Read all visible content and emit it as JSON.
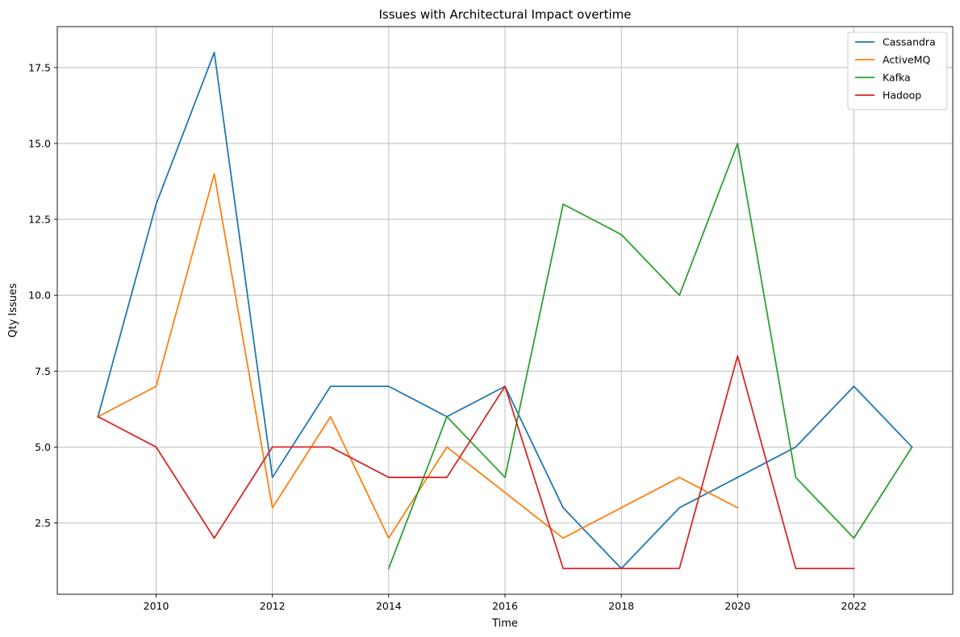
{
  "chart_data": {
    "type": "line",
    "title": "Issues with Architectural Impact overtime",
    "xlabel": "Time",
    "ylabel": "Qty Issues",
    "xlim": [
      2008.3,
      2023.7
    ],
    "ylim": [
      0.15,
      18.85
    ],
    "xticks": [
      2010,
      2012,
      2014,
      2016,
      2018,
      2020,
      2022
    ],
    "xtick_labels": [
      "2010",
      "2012",
      "2014",
      "2016",
      "2018",
      "2020",
      "2022"
    ],
    "yticks": [
      2.5,
      5.0,
      7.5,
      10.0,
      12.5,
      15.0,
      17.5
    ],
    "ytick_labels": [
      "2.5",
      "5.0",
      "7.5",
      "10.0",
      "12.5",
      "15.0",
      "17.5"
    ],
    "grid": true,
    "legend_position": "top-right",
    "series": [
      {
        "name": "Cassandra",
        "color": "#1f77b4",
        "x": [
          2009,
          2010,
          2011,
          2012,
          2013,
          2014,
          2015,
          2016,
          2017,
          2018,
          2019,
          2020,
          2021,
          2022,
          2023
        ],
        "y": [
          6,
          13,
          18,
          4,
          7,
          7,
          6,
          7,
          3,
          1,
          3,
          4,
          5,
          7,
          5
        ]
      },
      {
        "name": "ActiveMQ",
        "color": "#ff7f0e",
        "x": [
          2009,
          2010,
          2011,
          2012,
          2013,
          2014,
          2015,
          2016,
          2017,
          2018,
          2019,
          2020
        ],
        "y": [
          6,
          7,
          14,
          3,
          6,
          2,
          5,
          3.5,
          2,
          3,
          4,
          3
        ]
      },
      {
        "name": "Kafka",
        "color": "#2ca02c",
        "x": [
          2014,
          2015,
          2016,
          2017,
          2018,
          2019,
          2020,
          2021,
          2022,
          2023
        ],
        "y": [
          1,
          6,
          4,
          13,
          12,
          10,
          15,
          4,
          2,
          5
        ]
      },
      {
        "name": "Hadoop",
        "color": "#d62728",
        "x": [
          2009,
          2010,
          2011,
          2012,
          2013,
          2014,
          2015,
          2016,
          2017,
          2018,
          2019,
          2020,
          2021,
          2022
        ],
        "y": [
          6,
          5,
          2,
          5,
          5,
          4,
          4,
          7,
          1,
          1,
          1,
          8,
          1,
          1
        ]
      }
    ]
  }
}
